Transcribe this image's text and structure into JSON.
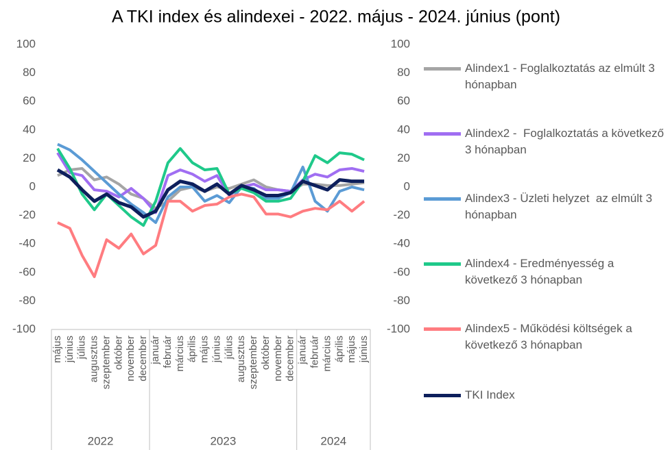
{
  "chart_data": {
    "type": "line",
    "title": "A TKI index és alindexei - 2022. május - 2024. június (pont)",
    "category_groups": [
      {
        "name": "2022",
        "categories": [
          "május",
          "június",
          "július",
          "augusztus",
          "szeptember",
          "október",
          "november",
          "december"
        ]
      },
      {
        "name": "2023",
        "categories": [
          "január",
          "február",
          "március",
          "április",
          "május",
          "június",
          "július",
          "augusztus",
          "szeptember",
          "október",
          "november",
          "december"
        ]
      },
      {
        "name": "2024",
        "categories": [
          "január",
          "február",
          "március",
          "április",
          "május",
          "június"
        ]
      }
    ],
    "ylim": [
      -100,
      100
    ],
    "yticks": [
      -100,
      -80,
      -60,
      -40,
      -20,
      0,
      20,
      40,
      60,
      80,
      100
    ],
    "y2lim": [
      -100,
      100
    ],
    "y2ticks": [
      -100,
      -80,
      -60,
      -40,
      -20,
      0,
      20,
      40,
      60,
      80,
      100
    ],
    "grid": false,
    "legend": "right",
    "series": [
      {
        "name": "Alindex1 - Foglalkoztatás az elmúlt 3 hónapban",
        "color": "#a5a5a5",
        "values": [
          8,
          12,
          13,
          5,
          7,
          2,
          -5,
          -8,
          -15,
          -10,
          -2,
          0,
          -3,
          0,
          -1,
          2,
          5,
          0,
          -2,
          -3,
          2,
          2,
          1,
          1,
          2,
          3
        ]
      },
      {
        "name": "Alindex2 -  Foglalkoztatás a következő 3 hónapban",
        "color": "#a06ef2",
        "values": [
          24,
          10,
          8,
          -2,
          -3,
          -7,
          -1,
          -8,
          -18,
          8,
          12,
          9,
          4,
          8,
          -6,
          0,
          2,
          -2,
          -2,
          -3,
          5,
          9,
          7,
          12,
          13,
          11
        ]
      },
      {
        "name": "Alindex3 - Üzleti helyzet  az elmúlt 3 hónapban",
        "color": "#5b9bd5",
        "values": [
          30,
          26,
          19,
          11,
          3,
          -5,
          -12,
          -18,
          -25,
          -7,
          0,
          0,
          -10,
          -6,
          -11,
          0,
          -1,
          -8,
          -8,
          -4,
          14,
          -10,
          -17,
          -3,
          0,
          -2
        ]
      },
      {
        "name": "Alindex4 - Eredményesség a következő 3 hónapban",
        "color": "#1fc98a",
        "values": [
          27,
          13,
          -5,
          -16,
          -5,
          -13,
          -21,
          -27,
          -10,
          17,
          27,
          17,
          12,
          13,
          -5,
          -1,
          -4,
          -10,
          -10,
          -8,
          4,
          22,
          17,
          24,
          23,
          19
        ]
      },
      {
        "name": "Alindex5 - Működési költségek a következő 3 hónapban",
        "color": "#ff7c80",
        "values": [
          -25,
          -29,
          -48,
          -63,
          -37,
          -43,
          -33,
          -47,
          -41,
          -10,
          -10,
          -17,
          -13,
          -12,
          -7,
          -5,
          -7,
          -19,
          -19,
          -21,
          -17,
          -15,
          -16,
          -10,
          -17,
          -10
        ]
      },
      {
        "name": "TKI Index",
        "color": "#0d1f5c",
        "values": [
          12,
          7,
          -2,
          -10,
          -5,
          -11,
          -14,
          -21,
          -17,
          -2,
          4,
          2,
          -3,
          2,
          -5,
          1,
          -2,
          -6,
          -6,
          -4,
          4,
          1,
          -2,
          5,
          4,
          4
        ]
      }
    ]
  }
}
